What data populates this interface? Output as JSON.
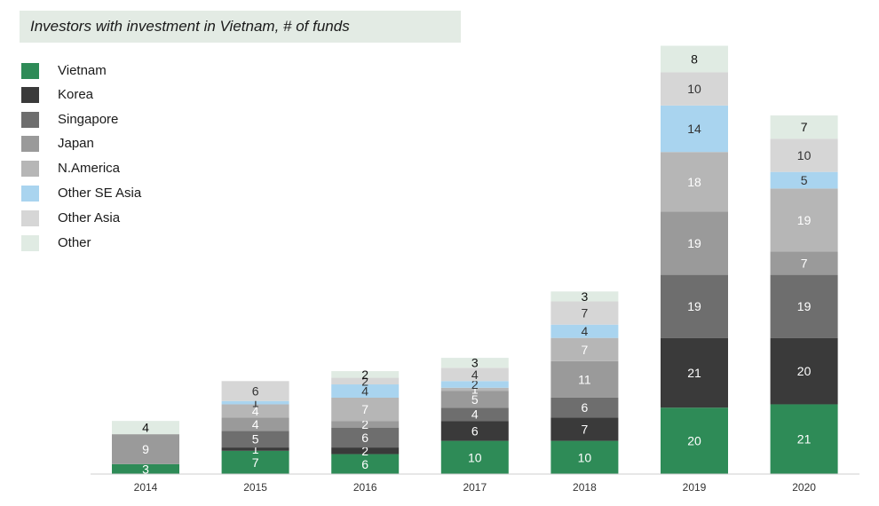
{
  "chart_data": {
    "type": "bar",
    "stacked": true,
    "title": "Investors with investment in Vietnam, # of funds",
    "categories": [
      "2014",
      "2015",
      "2016",
      "2017",
      "2018",
      "2019",
      "2020"
    ],
    "series": [
      {
        "name": "Vietnam",
        "color": "#2e8b57",
        "label_color": "#ffffff",
        "values": [
          3,
          7,
          6,
          10,
          10,
          20,
          21
        ]
      },
      {
        "name": "Korea",
        "color": "#3a3a3a",
        "label_color": "#ffffff",
        "values": [
          0,
          1,
          2,
          6,
          7,
          21,
          20
        ]
      },
      {
        "name": "Singapore",
        "color": "#6e6e6e",
        "label_color": "#ffffff",
        "values": [
          0,
          5,
          6,
          4,
          6,
          19,
          19
        ]
      },
      {
        "name": "Japan",
        "color": "#9a9a9a",
        "label_color": "#ffffff",
        "values": [
          9,
          4,
          2,
          5,
          11,
          19,
          7
        ]
      },
      {
        "name": "N.America",
        "color": "#b6b6b6",
        "label_color": "#ffffff",
        "values": [
          0,
          4,
          7,
          1,
          7,
          18,
          19
        ]
      },
      {
        "name": "Other SE Asia",
        "color": "#a9d4ef",
        "label_color": "#333333",
        "values": [
          0,
          1,
          4,
          2,
          4,
          14,
          5
        ]
      },
      {
        "name": "Other Asia",
        "color": "#d6d6d6",
        "label_color": "#333333",
        "values": [
          0,
          6,
          2,
          4,
          7,
          10,
          10
        ]
      },
      {
        "name": "Other",
        "color": "#e0ebe3",
        "label_color": "#111111",
        "values": [
          4,
          0,
          2,
          3,
          3,
          8,
          7
        ]
      }
    ],
    "legend_position": "left",
    "grid": false,
    "ylim": [
      0,
      130
    ]
  }
}
